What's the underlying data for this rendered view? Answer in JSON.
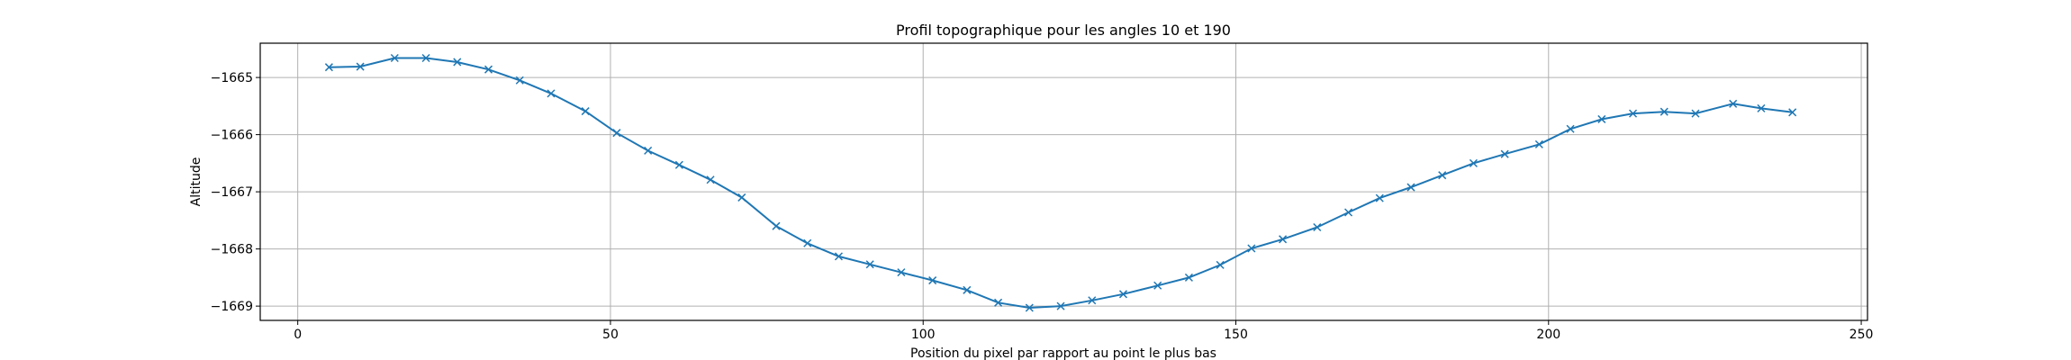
{
  "chart_data": {
    "type": "line",
    "title": "Profil topographique pour les angles 10 et 190",
    "xlabel": "Position du pixel par rapport au point le plus bas",
    "ylabel": "Altitude",
    "xlim": [
      -6,
      251
    ],
    "ylim": [
      -1669.25,
      -1664.4
    ],
    "xticks": [
      0,
      50,
      100,
      150,
      200,
      250
    ],
    "yticks": [
      -1665,
      -1666,
      -1667,
      -1668,
      -1669
    ],
    "grid": true,
    "line_color": "#1f77b4",
    "marker": "x",
    "series": [
      {
        "x": [
          5,
          10,
          15.5,
          20.5,
          25.5,
          30.5,
          35.5,
          40.5,
          46,
          51,
          56,
          61,
          66,
          71,
          76.5,
          81.5,
          86.5,
          91.5,
          96.5,
          101.5,
          107,
          112,
          117,
          122,
          127,
          132,
          137.5,
          142.5,
          147.5,
          152.5,
          157.5,
          163,
          168,
          173,
          178,
          183,
          188,
          193,
          198.5,
          203.5,
          208.5,
          213.5,
          218.5,
          223.5,
          229.5,
          234,
          239
        ],
        "y": [
          -1664.82,
          -1664.81,
          -1664.66,
          -1664.66,
          -1664.73,
          -1664.86,
          -1665.05,
          -1665.28,
          -1665.59,
          -1665.97,
          -1666.28,
          -1666.53,
          -1666.79,
          -1667.1,
          -1667.6,
          -1667.9,
          -1668.13,
          -1668.27,
          -1668.41,
          -1668.55,
          -1668.72,
          -1668.94,
          -1669.03,
          -1669.0,
          -1668.9,
          -1668.79,
          -1668.64,
          -1668.5,
          -1668.28,
          -1667.99,
          -1667.83,
          -1667.62,
          -1667.36,
          -1667.11,
          -1666.92,
          -1666.71,
          -1666.5,
          -1666.34,
          -1666.17,
          -1665.9,
          -1665.73,
          -1665.63,
          -1665.6,
          -1665.63,
          -1665.46,
          -1665.54,
          -1665.61
        ]
      }
    ]
  }
}
